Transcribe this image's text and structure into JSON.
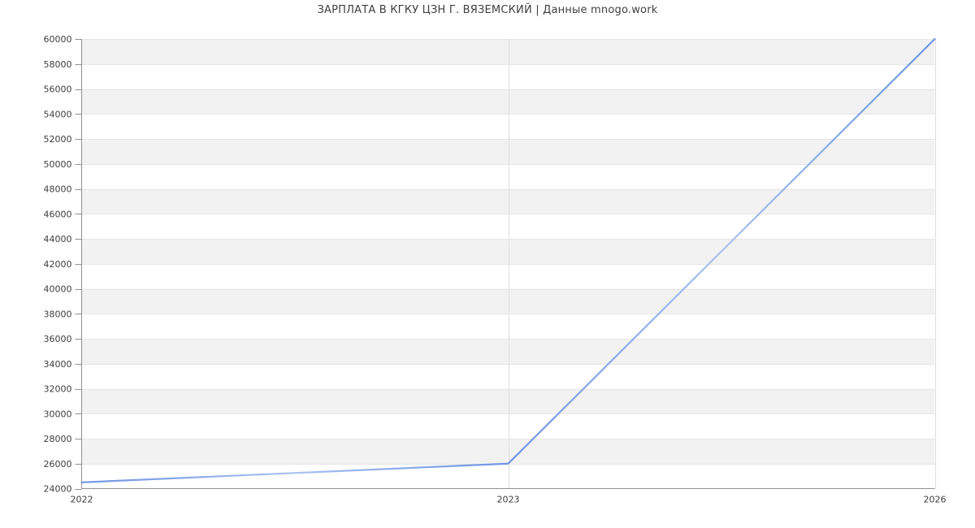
{
  "page": {
    "title": "ЗАРПЛАТА В КГКУ ЦЗН Г. ВЯЗЕМСКИЙ | Данные mnogo.work"
  },
  "chart_data": {
    "type": "line",
    "title": "ЗАРПЛАТА В КГКУ ЦЗН Г. ВЯЗЕМСКИЙ | Данные mnogo.work",
    "categories": [
      "2022",
      "2023",
      "2026"
    ],
    "values": [
      24500,
      26000,
      60000
    ],
    "xlabel": "",
    "ylabel": "",
    "ylim": [
      24000,
      60000
    ],
    "ytick_step": 2000,
    "grid": true,
    "legend": "none",
    "band_fill_order": "gray-first-from-top",
    "colors": {
      "line": "#6f94e4",
      "line_light": "#a9c2f0",
      "band": "#f2f2f2",
      "h_gridline": "#e6e6e6",
      "v_gridline": "#dedede",
      "axis": "#919191",
      "tick_text": "#3d3d3d",
      "title_text": "#3f3f3f",
      "background": "#ffffff"
    }
  }
}
